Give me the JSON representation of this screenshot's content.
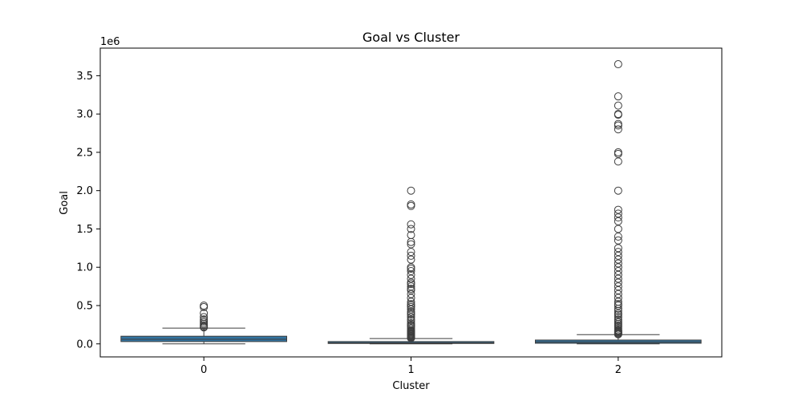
{
  "chart_data": {
    "type": "box",
    "title": "Goal vs Cluster",
    "xlabel": "Cluster",
    "ylabel": "Goal",
    "y_offset_label": "1e6",
    "y_scale": 1000000,
    "ylim": [
      -170000,
      3860000
    ],
    "y_ticks": [
      0,
      500000,
      1000000,
      1500000,
      2000000,
      2500000,
      3000000,
      3500000
    ],
    "y_tick_labels": [
      "0.0",
      "0.5",
      "1.0",
      "1.5",
      "2.0",
      "2.5",
      "3.0",
      "3.5"
    ],
    "categories": [
      "0",
      "1",
      "2"
    ],
    "box_color": "#3274a1",
    "edge_color": "#3d3d3d",
    "boxes": [
      {
        "category": "0",
        "whisker_low": 0,
        "q1": 30000,
        "median": 60000,
        "q3": 100000,
        "whisker_high": 205000,
        "outliers": [
          215000,
          225000,
          240000,
          260000,
          280000,
          300000,
          320000,
          350000,
          400000,
          480000,
          500000
        ]
      },
      {
        "category": "1",
        "whisker_low": 0,
        "q1": 5000,
        "median": 15000,
        "q3": 30000,
        "whisker_high": 70000,
        "outliers": [
          75000,
          80000,
          90000,
          100000,
          110000,
          120000,
          130000,
          140000,
          150000,
          160000,
          170000,
          180000,
          200000,
          220000,
          240000,
          250000,
          270000,
          300000,
          320000,
          350000,
          380000,
          400000,
          420000,
          450000,
          480000,
          500000,
          520000,
          550000,
          600000,
          650000,
          700000,
          720000,
          750000,
          780000,
          800000,
          850000,
          900000,
          950000,
          980000,
          1000000,
          1100000,
          1150000,
          1200000,
          1300000,
          1330000,
          1420000,
          1500000,
          1560000,
          1800000,
          1820000,
          2000000
        ]
      },
      {
        "category": "2",
        "whisker_low": 0,
        "q1": 8000,
        "median": 25000,
        "q3": 50000,
        "whisker_high": 120000,
        "outliers": [
          125000,
          130000,
          140000,
          150000,
          160000,
          170000,
          180000,
          200000,
          220000,
          240000,
          260000,
          280000,
          300000,
          320000,
          350000,
          380000,
          400000,
          430000,
          460000,
          500000,
          520000,
          550000,
          600000,
          650000,
          700000,
          750000,
          800000,
          850000,
          900000,
          950000,
          1000000,
          1050000,
          1100000,
          1150000,
          1200000,
          1250000,
          1350000,
          1400000,
          1500000,
          1600000,
          1650000,
          1700000,
          1750000,
          2000000,
          2380000,
          2480000,
          2500000,
          2800000,
          2850000,
          2870000,
          2990000,
          3000000,
          3110000,
          3230000,
          3650000
        ]
      }
    ]
  }
}
